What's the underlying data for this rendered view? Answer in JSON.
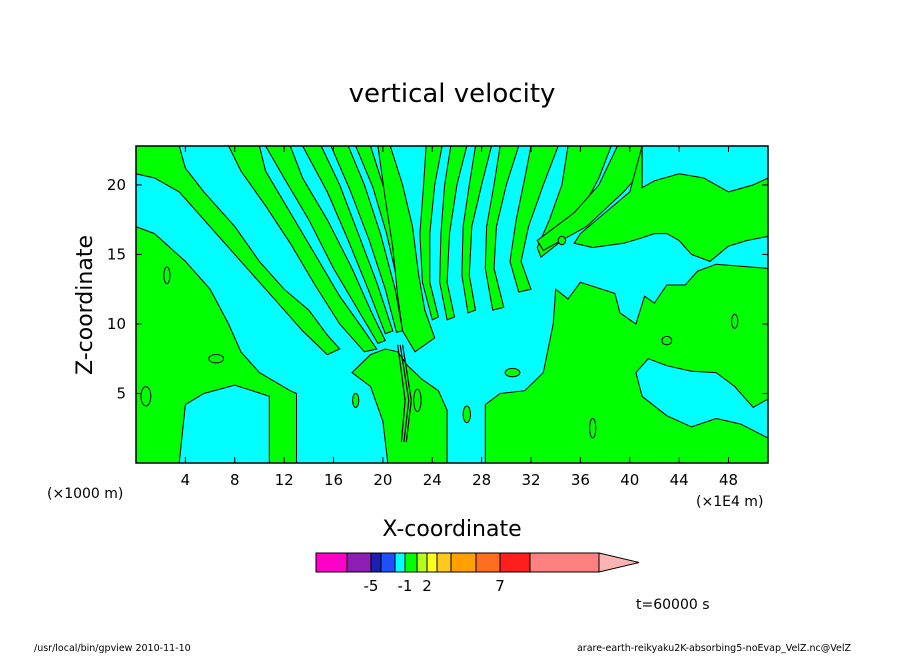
{
  "chart_data": {
    "type": "heatmap",
    "title": "vertical velocity",
    "xlabel": "X-coordinate",
    "ylabel": "Z-coordinate",
    "x_unit_left": "(×1000 m)",
    "x_unit_right": "(×1E4 m)",
    "x_ticks": [
      "4",
      "8",
      "12",
      "16",
      "20",
      "24",
      "28",
      "32",
      "36",
      "40",
      "44",
      "48"
    ],
    "x_tick_values": [
      4,
      8,
      12,
      16,
      20,
      24,
      28,
      32,
      36,
      40,
      44,
      48
    ],
    "y_ticks": [
      "5",
      "10",
      "15",
      "20"
    ],
    "y_tick_values": [
      5,
      10,
      15,
      20
    ],
    "xlim": [
      0,
      51.2
    ],
    "ylim": [
      0,
      22.8
    ],
    "colors": {
      "positive": "#00ff00",
      "negative": "#00ffff",
      "contour": "#000000"
    },
    "colorbar": {
      "colors": [
        "#ff00c8",
        "#8c1eb4",
        "#1e1eb4",
        "#1e50ff",
        "#00ffff",
        "#00ff00",
        "#b4ff1e",
        "#ffff1e",
        "#ffc81e",
        "#ffa000",
        "#ff6e1e",
        "#ff1e1e",
        "#ff8080",
        "#ffb4b4"
      ],
      "labels": [
        "-5",
        "-1",
        "2",
        "7"
      ],
      "label_after_color_index": [
        1,
        4,
        6,
        10
      ]
    },
    "time_label": "t=60000  s"
  },
  "footer": {
    "left": "/usr/local/bin/gpview  2010-11-10",
    "right": "arare-earth-reikyaku2K-absorbing5-noEvap_VelZ.nc@VelZ"
  }
}
